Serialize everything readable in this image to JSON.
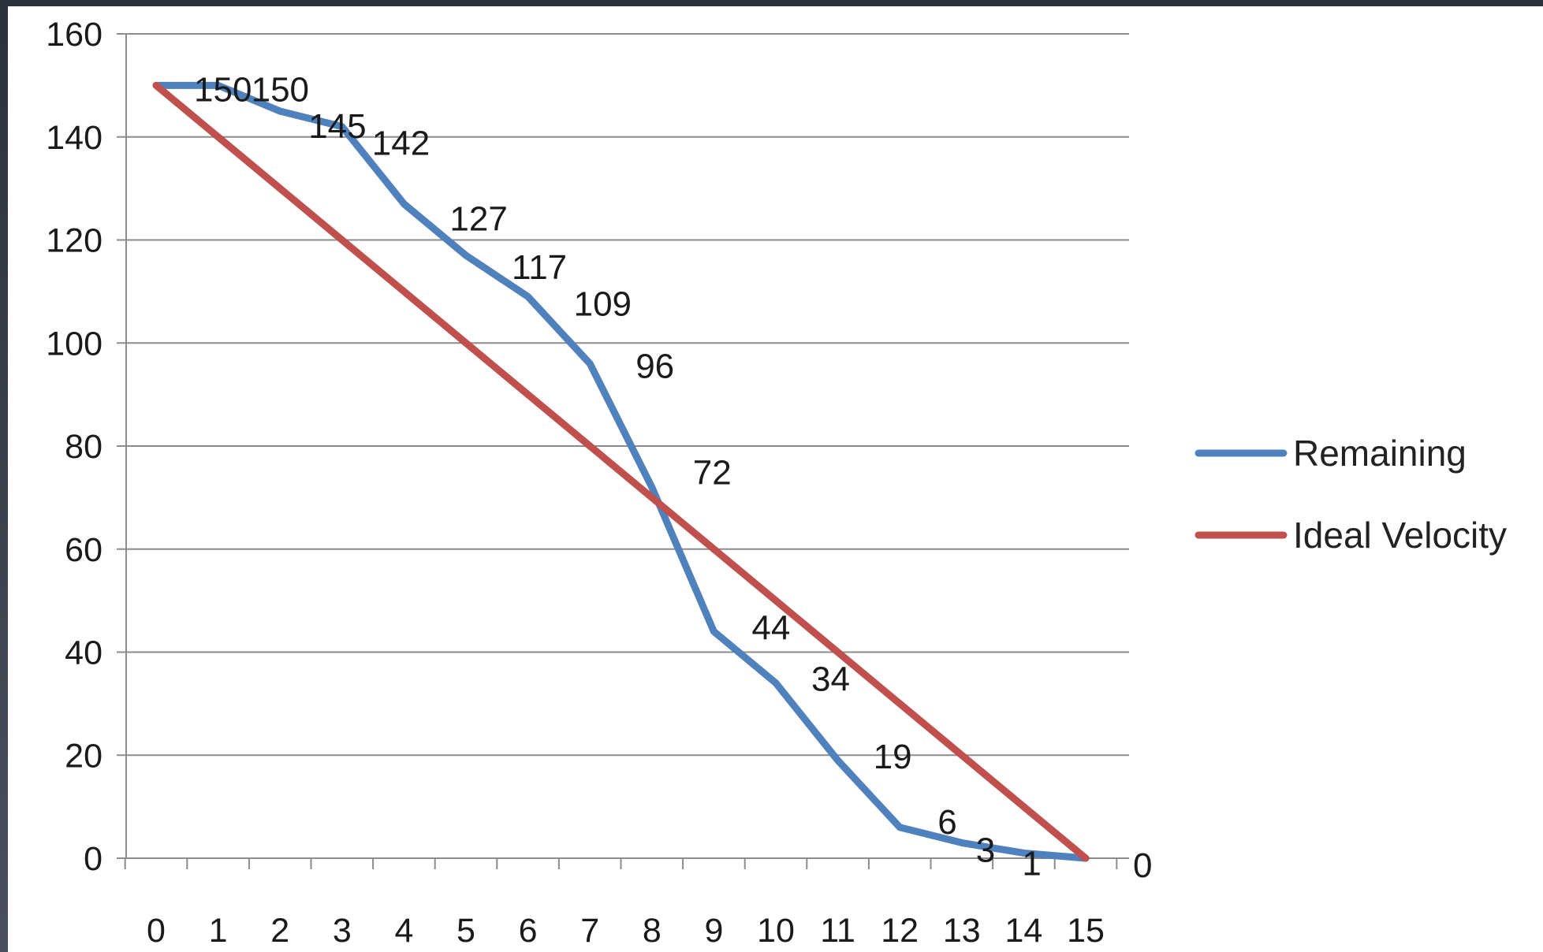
{
  "chart_data": {
    "type": "line",
    "x": [
      0,
      1,
      2,
      3,
      4,
      5,
      6,
      7,
      8,
      9,
      10,
      11,
      12,
      13,
      14,
      15
    ],
    "ylim": [
      0,
      160
    ],
    "yticks": [
      0,
      20,
      40,
      60,
      80,
      100,
      120,
      140,
      160
    ],
    "xticks": [
      "0",
      "1",
      "2",
      "3",
      "4",
      "5",
      "6",
      "7",
      "8",
      "9",
      "10",
      "11",
      "12",
      "13",
      "14",
      "15"
    ],
    "grid": "horizontal",
    "legend_position": "right",
    "series": [
      {
        "name": "Remaining",
        "color": "#4f81bd",
        "values": [
          150,
          150,
          145,
          142,
          127,
          117,
          109,
          96,
          72,
          44,
          34,
          19,
          6,
          3,
          1,
          0
        ],
        "data_labels": [
          "150",
          "150",
          "145",
          "142",
          "127",
          "117",
          "109",
          "96",
          "72",
          "44",
          "34",
          "19",
          "6",
          "3",
          "1",
          "0"
        ]
      },
      {
        "name": "Ideal Velocity",
        "color": "#c0504d",
        "values": [
          150,
          140,
          130,
          120,
          110,
          100,
          90,
          80,
          70,
          60,
          50,
          40,
          30,
          20,
          10,
          0
        ]
      }
    ]
  }
}
